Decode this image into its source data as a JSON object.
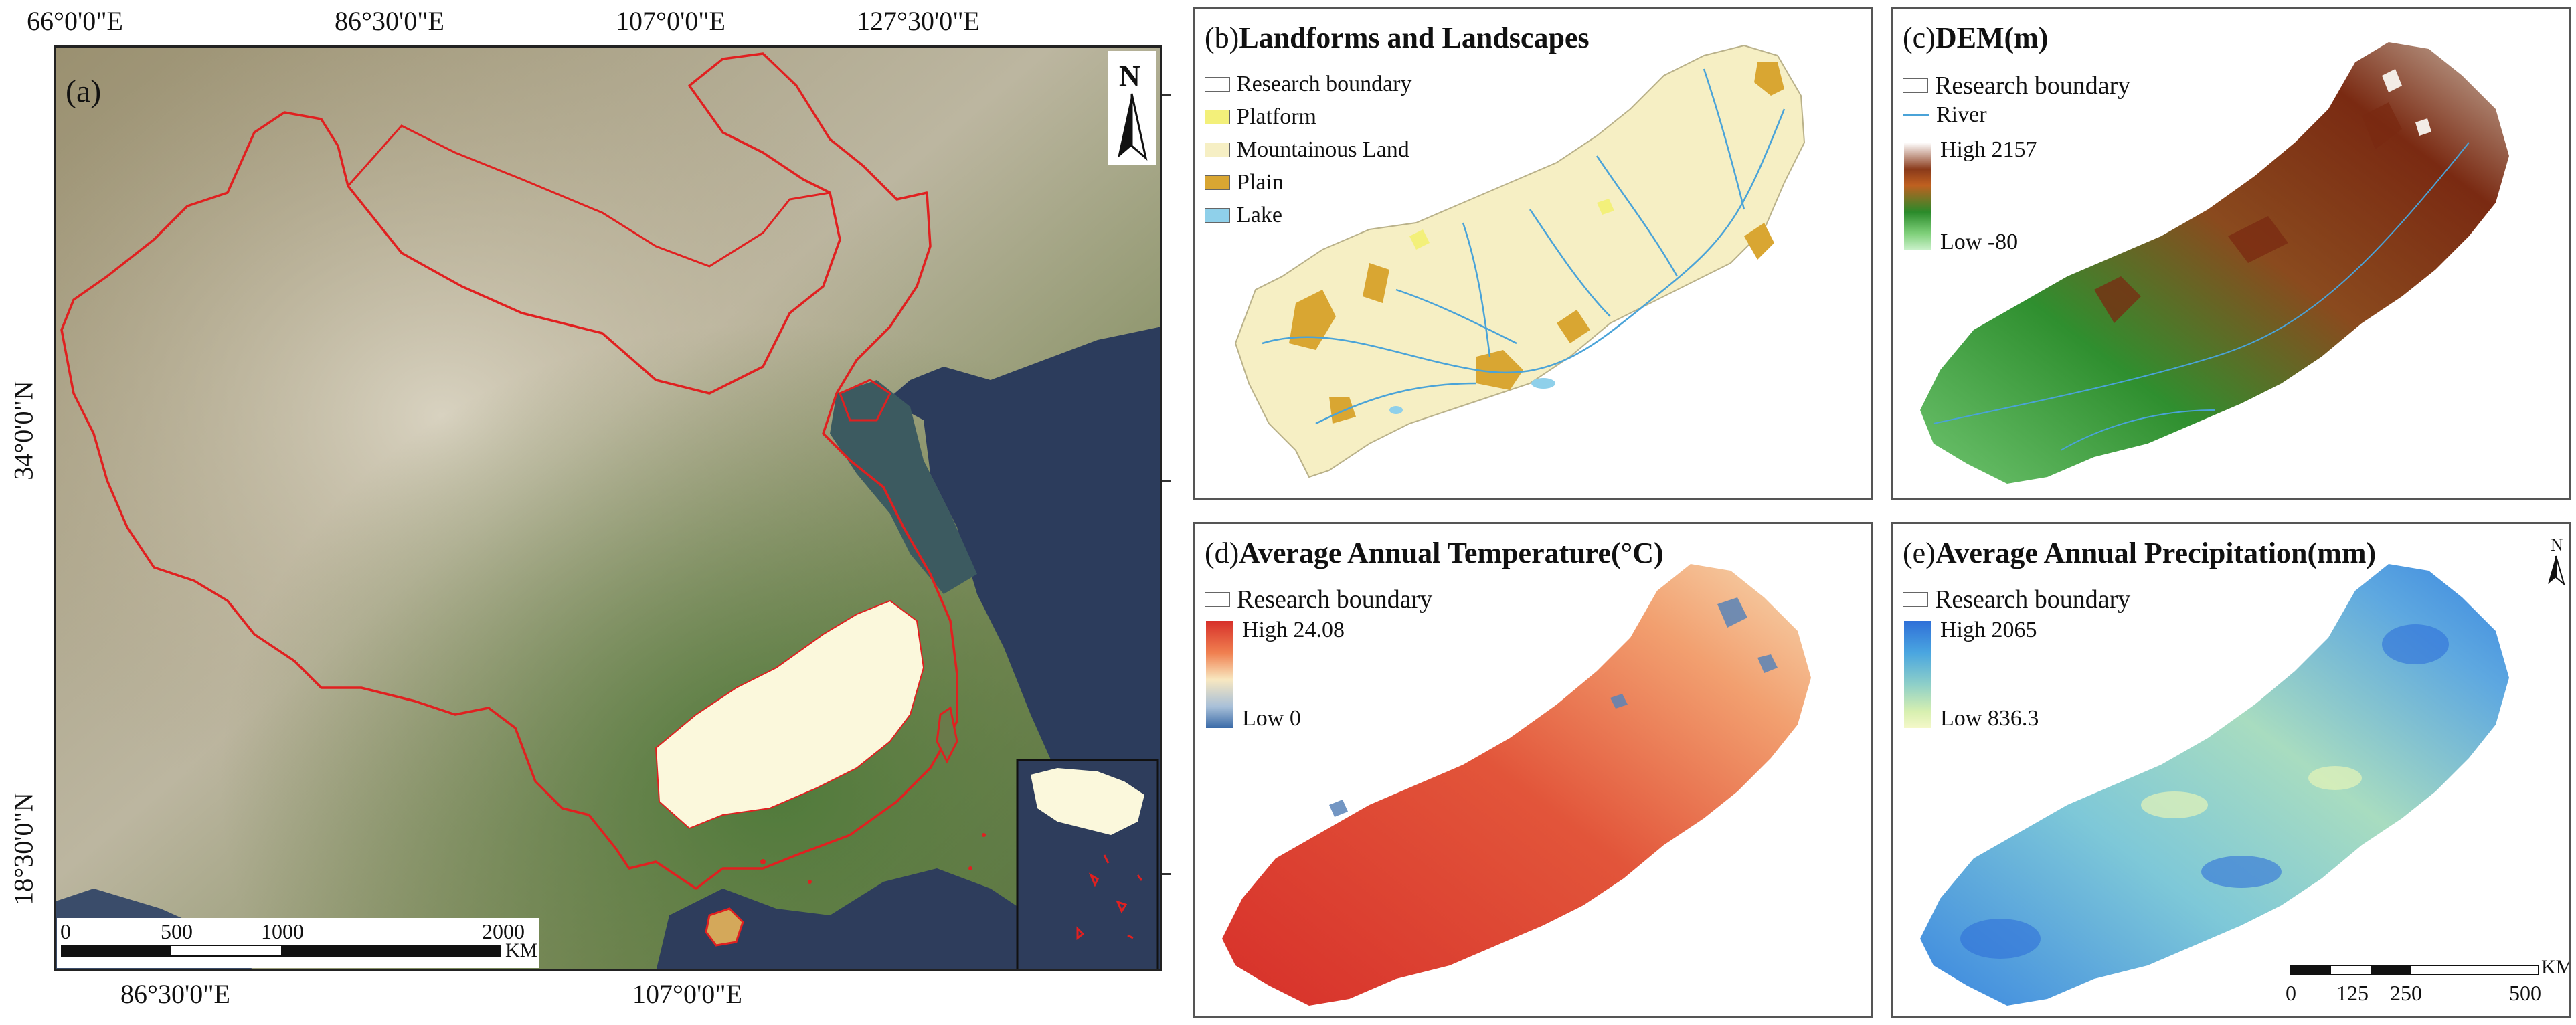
{
  "panel_a": {
    "label": "(a)",
    "top_ticks": [
      "66°0'0\"E",
      "86°30'0\"E",
      "107°0'0\"E",
      "127°30'0\"E"
    ],
    "bottom_ticks": [
      "86°30'0\"E",
      "107°0'0\"E"
    ],
    "left_ticks": [
      "34°0'0\"N",
      "18°30'0\"N"
    ],
    "north": "N",
    "scale": {
      "labels": [
        "0",
        "500",
        "1000",
        "2000"
      ],
      "unit": "KM"
    }
  },
  "panel_b": {
    "title_prefix": "(b)",
    "title": "Landforms and Landscapes",
    "legend": [
      {
        "label": "Research boundary",
        "color": "#ffffff"
      },
      {
        "label": "Platform",
        "color": "#f3f07a"
      },
      {
        "label": "Mountainous Land",
        "color": "#f6efc4"
      },
      {
        "label": "Plain",
        "color": "#d9a632"
      },
      {
        "label": "Lake",
        "color": "#8fd0ea"
      }
    ]
  },
  "panel_c": {
    "title_prefix": "(c)",
    "title": "DEM(m)",
    "legend": {
      "boundary": "Research boundary",
      "river": "River",
      "high": "High 2157",
      "low": "Low -80"
    }
  },
  "panel_d": {
    "title_prefix": "(d)",
    "title": "Average Annual Temperature(°C)",
    "legend": {
      "boundary": "Research boundary",
      "high": "High 24.08",
      "low": "Low 0"
    }
  },
  "panel_e": {
    "title_prefix": "(e)",
    "title": "Average Annual Precipitation(mm)",
    "legend": {
      "boundary": "Research boundary",
      "high": "High 2065",
      "low": "Low 836.3"
    },
    "north": "N",
    "scale": {
      "labels": [
        "0",
        "125",
        "250",
        "500"
      ],
      "unit": "KM"
    }
  },
  "colors": {
    "border_red": "#e02020",
    "study_area": "#fbf8dc",
    "ocean": "#2a3a5a"
  }
}
